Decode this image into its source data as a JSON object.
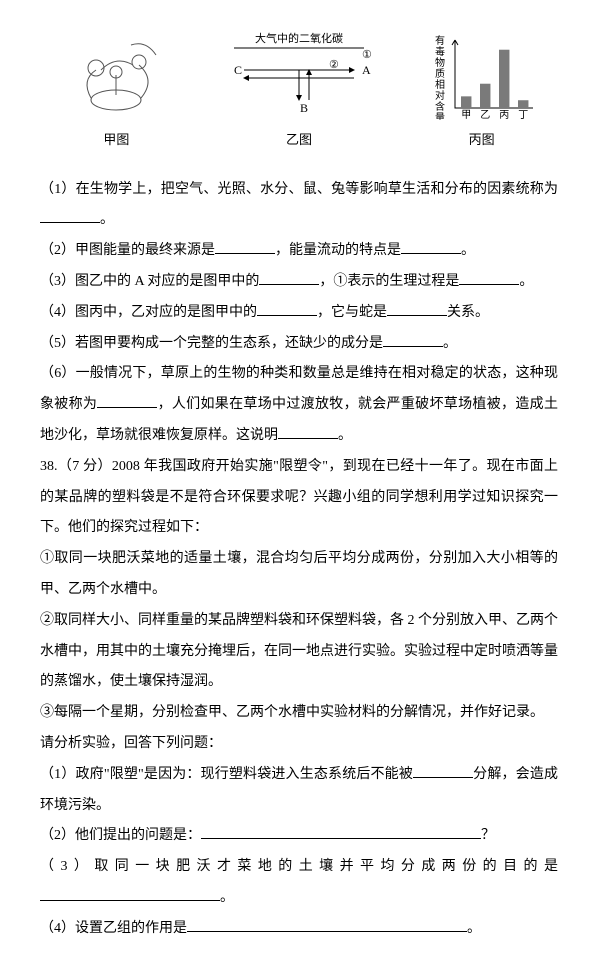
{
  "figures": {
    "a": {
      "label": "甲图"
    },
    "b": {
      "label": "乙图",
      "title": "大气中的二氧化碳",
      "nodes": {
        "C": "C",
        "B": "B",
        "A": "A"
      },
      "marks": {
        "one": "①",
        "two": "②"
      }
    },
    "c": {
      "label": "丙图",
      "ylabel": "有毒物质相对含量",
      "xlabels": [
        "甲",
        "乙",
        "丙",
        "丁"
      ],
      "values": [
        12,
        25,
        60,
        8
      ],
      "bar_color": "#7a7a7a",
      "axis_color": "#000",
      "ylim": 70
    }
  },
  "q": {
    "l1a": "（1）在生物学上，把空气、光照、水分、鼠、兔等影响草生活和分布的因素统称为",
    "l1b": "。",
    "l2a": "（2）甲图能量的最终来源是",
    "l2b": "，能量流动的特点是",
    "l2c": "。",
    "l3a": "（3）图乙中的 A 对应的是图甲中的",
    "l3b": "，①表示的生理过程是",
    "l3c": "。",
    "l4a": "（4）图丙中，乙对应的是图甲中的",
    "l4b": "，它与蛇是",
    "l4c": "关系。",
    "l5a": "（5）若图甲要构成一个完整的生态系，还缺少的成分是",
    "l5b": "。",
    "l6a": "（6）一般情况下，草原上的生物的种类和数量总是维持在相对稳定的状态，这种现象被称为",
    "l6b": "，人们如果在草场中过渡放牧，就会严重破坏草场植被，造成土地沙化，草场就很难恢复原样。这说明",
    "l6c": "。"
  },
  "q38": {
    "head": "38.（7 分）2008 年我国政府开始实施\"限塑令\"，到现在已经十一年了。现在市面上的某品牌的塑料袋是不是符合环保要求呢？兴趣小组的同学想利用学过知识探究一下。他们的探究过程如下：",
    "s1": "①取同一块肥沃菜地的适量土壤，混合均匀后平均分成两份，分别加入大小相等的甲、乙两个水槽中。",
    "s2": "②取同样大小、同样重量的某品牌塑料袋和环保塑料袋，各 2 个分别放入甲、乙两个水槽中，用其中的土壤充分掩埋后，在同一地点进行实验。实验过程中定时喷洒等量的蒸馏水，使土壤保持湿润。",
    "s3": "③每隔一个星期，分别检查甲、乙两个水槽中实验材料的分解情况，并作好记录。",
    "ask": "请分析实验，回答下列问题：",
    "q1a": "（1）政府\"限塑\"是因为：现行塑料袋进入生态系统后不能被",
    "q1b": "分解，会造成环境污染。",
    "q2a": "（2）他们提出的问题是：",
    "q2b": "？",
    "q3a": "（3）取同一块肥沃才菜地的土壤并平均分成两份的目的是",
    "q3b": "。",
    "q4a": "（4）设置乙组的作用是",
    "q4b": "。"
  }
}
